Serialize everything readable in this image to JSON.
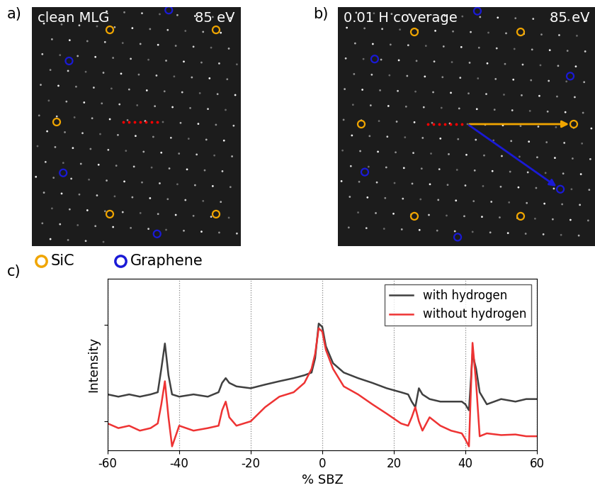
{
  "panel_labels": [
    "a)",
    "b)",
    "c)"
  ],
  "images": [
    {
      "title": "clean MLG",
      "energy": "85 eV"
    },
    {
      "title": "0.01 H coverage",
      "energy": "85 eV"
    }
  ],
  "spot_legend": [
    {
      "name": "SiC",
      "color": "#f0a500"
    },
    {
      "name": "Graphene",
      "color": "#1a1ad6"
    }
  ],
  "chart_data": {
    "type": "line",
    "x_label": "% SBZ",
    "y_label": "Intensity",
    "log": "y",
    "grid": true,
    "legend": "upper right",
    "tick_labels": "x",
    "xlim": [
      -60,
      60
    ],
    "xticks": [
      -60,
      -40,
      -20,
      0,
      20,
      40,
      60
    ],
    "ylim": [
      0.5,
      30
    ],
    "yticks": [
      1,
      10
    ],
    "x": [
      -60,
      -57,
      -54,
      -51,
      -48,
      -46,
      -45,
      -44,
      -43,
      -42,
      -40,
      -36,
      -32,
      -29,
      -28,
      -27,
      -26,
      -24,
      -20,
      -16,
      -12,
      -8,
      -5,
      -3,
      -2,
      -1,
      0,
      1,
      3,
      6,
      10,
      14,
      18,
      22,
      24,
      25,
      26,
      27,
      28,
      30,
      33,
      36,
      39,
      40,
      41,
      42,
      43,
      44,
      46,
      50,
      54,
      57,
      60
    ],
    "series": [
      {
        "name": "with hydrogen",
        "color": "#404040",
        "values": [
          1.9,
          1.8,
          1.9,
          1.8,
          1.9,
          2.0,
          3.5,
          6.4,
          3.0,
          1.9,
          1.8,
          1.9,
          1.8,
          2.0,
          2.5,
          2.8,
          2.5,
          2.3,
          2.2,
          2.4,
          2.6,
          2.8,
          3.0,
          3.2,
          4.5,
          10.3,
          9.5,
          6.0,
          4.0,
          3.2,
          2.8,
          2.5,
          2.2,
          2.0,
          1.9,
          1.6,
          1.4,
          2.2,
          1.9,
          1.7,
          1.6,
          1.6,
          1.6,
          1.5,
          1.3,
          5.0,
          3.5,
          2.0,
          1.5,
          1.7,
          1.6,
          1.7,
          1.7
        ]
      },
      {
        "name": "without hydrogen",
        "color": "#ee3333",
        "values": [
          0.95,
          0.85,
          0.9,
          0.8,
          0.85,
          0.95,
          1.5,
          2.6,
          1.1,
          0.55,
          0.9,
          0.8,
          0.85,
          0.9,
          1.3,
          1.6,
          1.1,
          0.9,
          1.0,
          1.4,
          1.8,
          2.0,
          2.5,
          3.5,
          5.0,
          9.2,
          8.5,
          5.5,
          3.5,
          2.3,
          1.9,
          1.5,
          1.2,
          0.95,
          0.9,
          1.1,
          1.4,
          1.0,
          0.8,
          1.1,
          0.9,
          0.8,
          0.75,
          0.65,
          0.55,
          6.5,
          2.5,
          0.7,
          0.75,
          0.72,
          0.73,
          0.7,
          0.7
        ]
      }
    ]
  }
}
